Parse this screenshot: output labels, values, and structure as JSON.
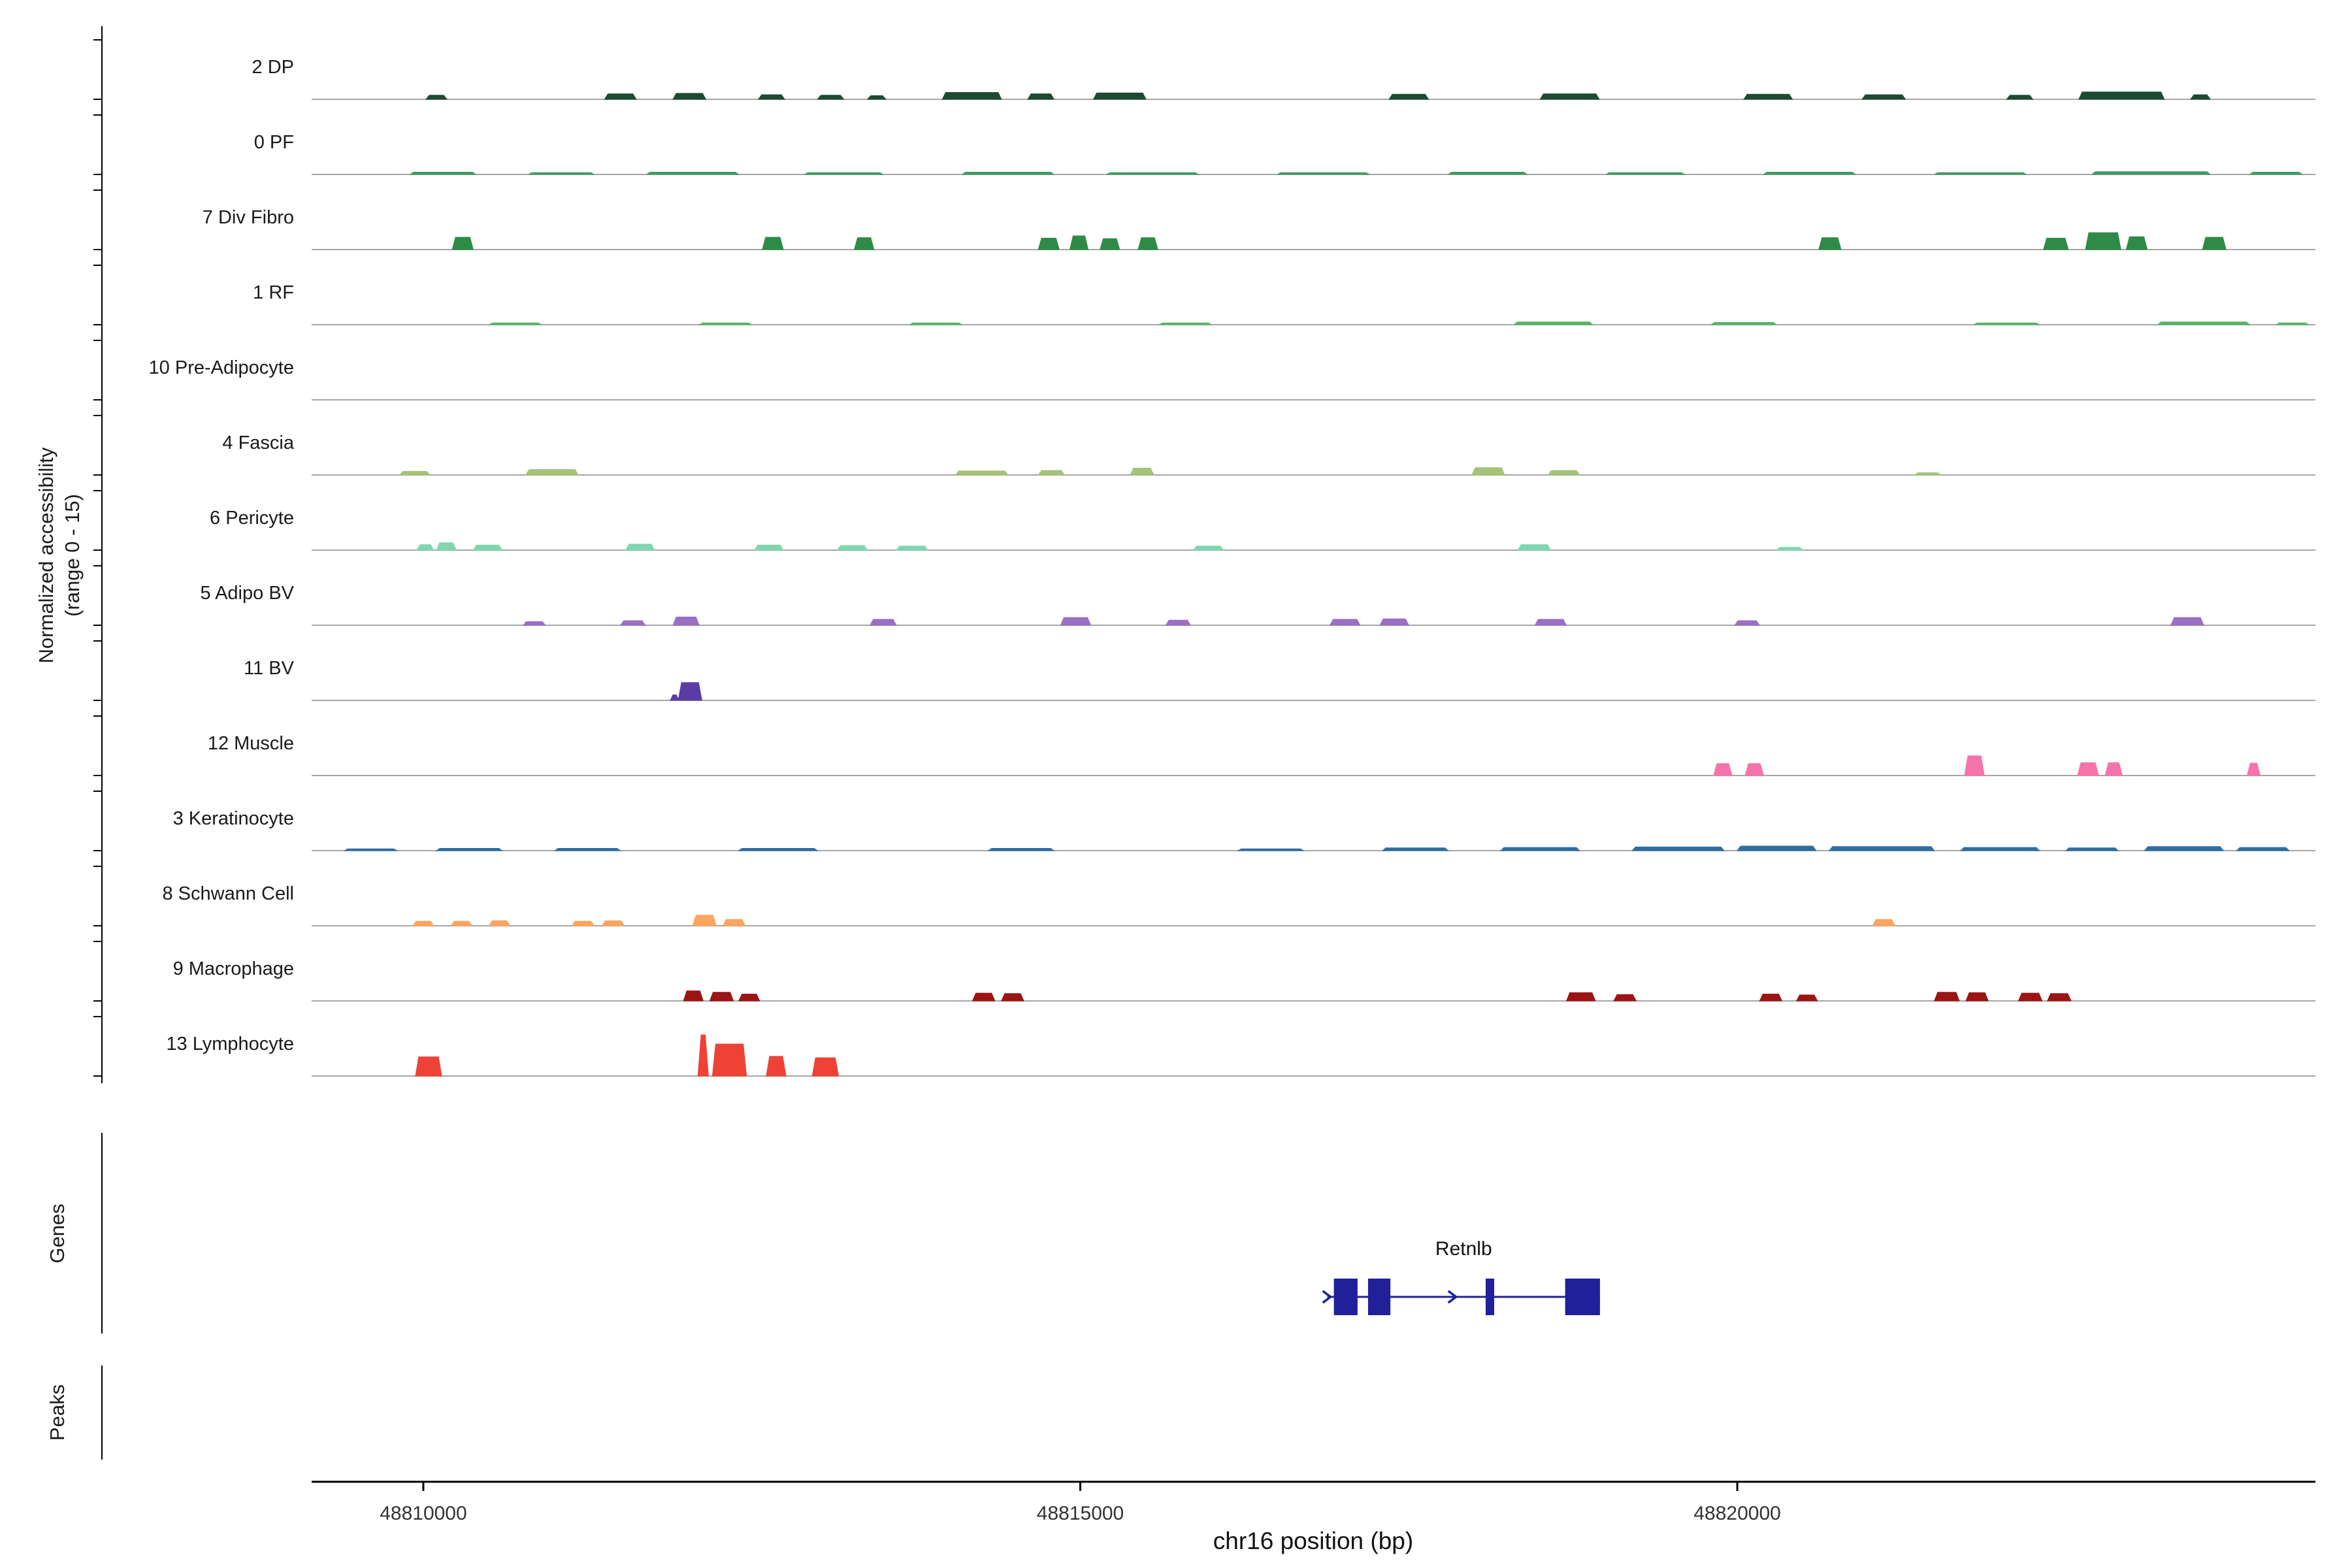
{
  "figure": {
    "y_axis_label_line1": "Normalized accessibility",
    "y_axis_label_line2": "(range 0 - 15)",
    "genes_section_label": "Genes",
    "peaks_section_label": "Peaks",
    "x_axis_label": "chr16 position (bp)"
  },
  "chart_data": {
    "type": "area",
    "title": "",
    "xlabel": "chr16 position (bp)",
    "ylabel": "Normalized accessibility (range 0 - 15)",
    "x_domain": [
      48809150,
      48824400
    ],
    "x_ticks": [
      48810000,
      48815000,
      48820000
    ],
    "x_tick_labels": [
      "48810000",
      "48815000",
      "48820000"
    ],
    "track_value_range": [
      0,
      15
    ],
    "grid": false,
    "baseline_color": "#a6a6a6",
    "axis_color": "#000000",
    "tracks": [
      {
        "label": "2 DP",
        "color": "#1d4a33",
        "segments": [
          [
            48810020,
            48810180,
            0.9
          ],
          [
            48811380,
            48811620,
            1.2
          ],
          [
            48811900,
            48812150,
            1.3
          ],
          [
            48812550,
            48812750,
            1.0
          ],
          [
            48813000,
            48813200,
            0.9
          ],
          [
            48813380,
            48813520,
            0.8
          ],
          [
            48813950,
            48814400,
            1.5
          ],
          [
            48814600,
            48814800,
            1.2
          ],
          [
            48815100,
            48815500,
            1.4
          ],
          [
            48817350,
            48817650,
            1.1
          ],
          [
            48818500,
            48818950,
            1.2
          ],
          [
            48820050,
            48820420,
            1.1
          ],
          [
            48820950,
            48821280,
            1.0
          ],
          [
            48822050,
            48822250,
            0.9
          ],
          [
            48822600,
            48823250,
            1.6
          ],
          [
            48823450,
            48823600,
            1.0
          ]
        ]
      },
      {
        "label": "0 PF",
        "color": "#3f9b62",
        "segments": [
          [
            48809900,
            48810400,
            0.5
          ],
          [
            48810800,
            48811300,
            0.4
          ],
          [
            48811700,
            48812400,
            0.5
          ],
          [
            48812900,
            48813500,
            0.4
          ],
          [
            48814100,
            48814800,
            0.5
          ],
          [
            48815200,
            48815900,
            0.4
          ],
          [
            48816500,
            48817200,
            0.4
          ],
          [
            48817800,
            48818400,
            0.5
          ],
          [
            48819000,
            48819600,
            0.4
          ],
          [
            48820200,
            48820900,
            0.5
          ],
          [
            48821500,
            48822200,
            0.4
          ],
          [
            48822700,
            48823600,
            0.6
          ],
          [
            48823900,
            48824300,
            0.5
          ]
        ]
      },
      {
        "label": "7 Div Fibro",
        "color": "#2e8b47",
        "segments": [
          [
            48810220,
            48810380,
            2.7
          ],
          [
            48812580,
            48812740,
            2.7
          ],
          [
            48813280,
            48813430,
            2.6
          ],
          [
            48814680,
            48814840,
            2.5
          ],
          [
            48814920,
            48815060,
            3.0
          ],
          [
            48815150,
            48815300,
            2.4
          ],
          [
            48815440,
            48815590,
            2.6
          ],
          [
            48820620,
            48820790,
            2.6
          ],
          [
            48822330,
            48822520,
            2.5
          ],
          [
            48822650,
            48822920,
            3.7
          ],
          [
            48822960,
            48823120,
            2.8
          ],
          [
            48823540,
            48823720,
            2.7
          ]
        ]
      },
      {
        "label": "1 RF",
        "color": "#58b368",
        "segments": [
          [
            48810500,
            48810900,
            0.4
          ],
          [
            48812100,
            48812500,
            0.4
          ],
          [
            48813700,
            48814100,
            0.4
          ],
          [
            48815600,
            48816000,
            0.4
          ],
          [
            48818300,
            48818900,
            0.6
          ],
          [
            48819800,
            48820300,
            0.5
          ],
          [
            48821800,
            48822300,
            0.4
          ],
          [
            48823200,
            48823900,
            0.6
          ],
          [
            48824100,
            48824350,
            0.4
          ]
        ]
      },
      {
        "label": "10 Pre-Adipocyte",
        "color": "#63c08e",
        "segments": []
      },
      {
        "label": "4 Fascia",
        "color": "#a4c478",
        "segments": [
          [
            48809820,
            48810050,
            0.8
          ],
          [
            48810780,
            48811180,
            1.2
          ],
          [
            48814050,
            48814450,
            0.9
          ],
          [
            48814680,
            48814880,
            1.0
          ],
          [
            48815380,
            48815560,
            1.5
          ],
          [
            48817980,
            48818230,
            1.6
          ],
          [
            48818560,
            48818800,
            1.0
          ],
          [
            48821350,
            48821550,
            0.5
          ]
        ]
      },
      {
        "label": "6 Pericyte",
        "color": "#7fd6b0",
        "segments": [
          [
            48809950,
            48810080,
            1.2
          ],
          [
            48810100,
            48810250,
            1.6
          ],
          [
            48810380,
            48810600,
            1.1
          ],
          [
            48811540,
            48811760,
            1.3
          ],
          [
            48812520,
            48812740,
            1.1
          ],
          [
            48813150,
            48813380,
            1.0
          ],
          [
            48813600,
            48813840,
            0.9
          ],
          [
            48815860,
            48816090,
            0.9
          ],
          [
            48818330,
            48818580,
            1.2
          ],
          [
            48820300,
            48820500,
            0.6
          ]
        ]
      },
      {
        "label": "5 Adipo BV",
        "color": "#9b6fc5",
        "segments": [
          [
            48810760,
            48810930,
            0.8
          ],
          [
            48811500,
            48811690,
            1.0
          ],
          [
            48811900,
            48812100,
            1.8
          ],
          [
            48813400,
            48813600,
            1.3
          ],
          [
            48814850,
            48815080,
            1.7
          ],
          [
            48815650,
            48815840,
            1.1
          ],
          [
            48816900,
            48817130,
            1.3
          ],
          [
            48817280,
            48817500,
            1.4
          ],
          [
            48818460,
            48818700,
            1.3
          ],
          [
            48819980,
            48820170,
            1.0
          ],
          [
            48823300,
            48823550,
            1.7
          ]
        ]
      },
      {
        "label": "11 BV",
        "color": "#5a3ca5",
        "segments": [
          [
            48811880,
            48811945,
            1.2
          ],
          [
            48811940,
            48812120,
            3.9
          ]
        ]
      },
      {
        "label": "12 Muscle",
        "color": "#f672aa",
        "segments": [
          [
            48819820,
            48819960,
            2.6
          ],
          [
            48820060,
            48820200,
            2.6
          ],
          [
            48821730,
            48821880,
            4.3
          ],
          [
            48822590,
            48822750,
            2.8
          ],
          [
            48822800,
            48822930,
            2.8
          ],
          [
            48823880,
            48823980,
            2.7
          ]
        ]
      },
      {
        "label": "3 Keratinocyte",
        "color": "#2e6da4",
        "segments": [
          [
            48809400,
            48809800,
            0.4
          ],
          [
            48810100,
            48810600,
            0.5
          ],
          [
            48811000,
            48811500,
            0.5
          ],
          [
            48812400,
            48813000,
            0.5
          ],
          [
            48814300,
            48814800,
            0.5
          ],
          [
            48816200,
            48816700,
            0.4
          ],
          [
            48817300,
            48817800,
            0.6
          ],
          [
            48818200,
            48818800,
            0.7
          ],
          [
            48819200,
            48819900,
            0.8
          ],
          [
            48820000,
            48820600,
            1.0
          ],
          [
            48820700,
            48821500,
            0.9
          ],
          [
            48821700,
            48822300,
            0.7
          ],
          [
            48822500,
            48822900,
            0.6
          ],
          [
            48823100,
            48823700,
            0.9
          ],
          [
            48823800,
            48824200,
            0.7
          ]
        ]
      },
      {
        "label": "8 Schwann Cell",
        "color": "#fca55f",
        "segments": [
          [
            48809920,
            48810080,
            1.0
          ],
          [
            48810210,
            48810370,
            1.0
          ],
          [
            48810500,
            48810660,
            1.1
          ],
          [
            48811130,
            48811300,
            1.0
          ],
          [
            48811360,
            48811530,
            1.1
          ],
          [
            48812050,
            48812230,
            2.3
          ],
          [
            48812280,
            48812450,
            1.4
          ],
          [
            48821030,
            48821200,
            1.4
          ]
        ]
      },
      {
        "label": "9 Macrophage",
        "color": "#9c1414",
        "segments": [
          [
            48811980,
            48812130,
            2.2
          ],
          [
            48812180,
            48812360,
            1.9
          ],
          [
            48812400,
            48812560,
            1.5
          ],
          [
            48814180,
            48814350,
            1.7
          ],
          [
            48814400,
            48814570,
            1.6
          ],
          [
            48818700,
            48818920,
            1.8
          ],
          [
            48819060,
            48819230,
            1.4
          ],
          [
            48820170,
            48820340,
            1.5
          ],
          [
            48820450,
            48820610,
            1.3
          ],
          [
            48821500,
            48821690,
            1.9
          ],
          [
            48821740,
            48821910,
            1.8
          ],
          [
            48822140,
            48822320,
            1.7
          ],
          [
            48822360,
            48822540,
            1.6
          ]
        ]
      },
      {
        "label": "13 Lymphocyte",
        "color": "#ee4237",
        "segments": [
          [
            48809940,
            48810140,
            4.2
          ],
          [
            48812090,
            48812170,
            9.0
          ],
          [
            48812200,
            48812460,
            7.0
          ],
          [
            48812610,
            48812760,
            4.3
          ],
          [
            48812960,
            48813160,
            4.0
          ]
        ]
      }
    ],
    "gene_track": {
      "genes": [
        {
          "name": "Retnlb",
          "strand": "+",
          "start": 48816880,
          "end": 48818955,
          "exons": [
            [
              48816930,
              48817110
            ],
            [
              48817190,
              48817360
            ],
            [
              48818085,
              48818150
            ],
            [
              48818690,
              48818955
            ]
          ],
          "arrow_positions": [
            48816895,
            48817850
          ],
          "color": "#20209b"
        }
      ]
    },
    "peaks_track": {
      "peaks": []
    }
  }
}
